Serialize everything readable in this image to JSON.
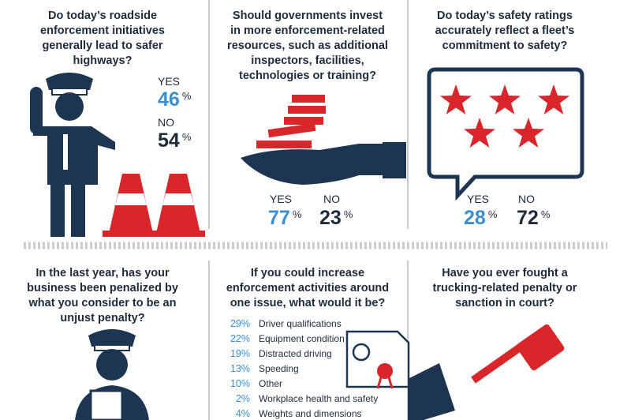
{
  "panels": [
    {
      "question": [
        "Do today’s roadside",
        "enforcement initiatives",
        "generally lead to safer",
        "highways?"
      ],
      "answers": [
        {
          "label": "YES",
          "value": "46",
          "unit": "%"
        },
        {
          "label": "NO",
          "value": "54",
          "unit": "%"
        }
      ]
    },
    {
      "question": [
        "Should governments invest",
        "in more enforcement-related",
        "resources, such as additional",
        "inspectors, facilities,",
        "technologies or training?"
      ],
      "answers": [
        {
          "label": "YES",
          "value": "77",
          "unit": "%"
        },
        {
          "label": "NO",
          "value": "23",
          "unit": "%"
        }
      ]
    },
    {
      "question": [
        "Do today’s safety ratings",
        "accurately reflect a fleet’s",
        "commitment to safety?"
      ],
      "answers": [
        {
          "label": "YES",
          "value": "28",
          "unit": "%"
        },
        {
          "label": "NO",
          "value": "72",
          "unit": "%"
        }
      ]
    },
    {
      "question": [
        "In the last year, has your",
        "business been penalized by",
        "what you consider to be an",
        "unjust penalty?"
      ]
    },
    {
      "question": [
        "If you could increase",
        "enforcement activities around",
        "one issue, what would it be?"
      ],
      "items": [
        {
          "percent": "29%",
          "label": "Driver qualifications"
        },
        {
          "percent": "22%",
          "label": "Equipment condition"
        },
        {
          "percent": "19%",
          "label": "Distracted driving"
        },
        {
          "percent": "13%",
          "label": "Speeding"
        },
        {
          "percent": "10%",
          "label": "Other"
        },
        {
          "percent": "2%",
          "label": "Workplace health and safety"
        },
        {
          "percent": "4%",
          "label": "Weights and dimensions"
        }
      ]
    },
    {
      "question": [
        "Have you ever fought a",
        "trucking-related penalty or",
        "sanction in court?"
      ]
    }
  ]
}
